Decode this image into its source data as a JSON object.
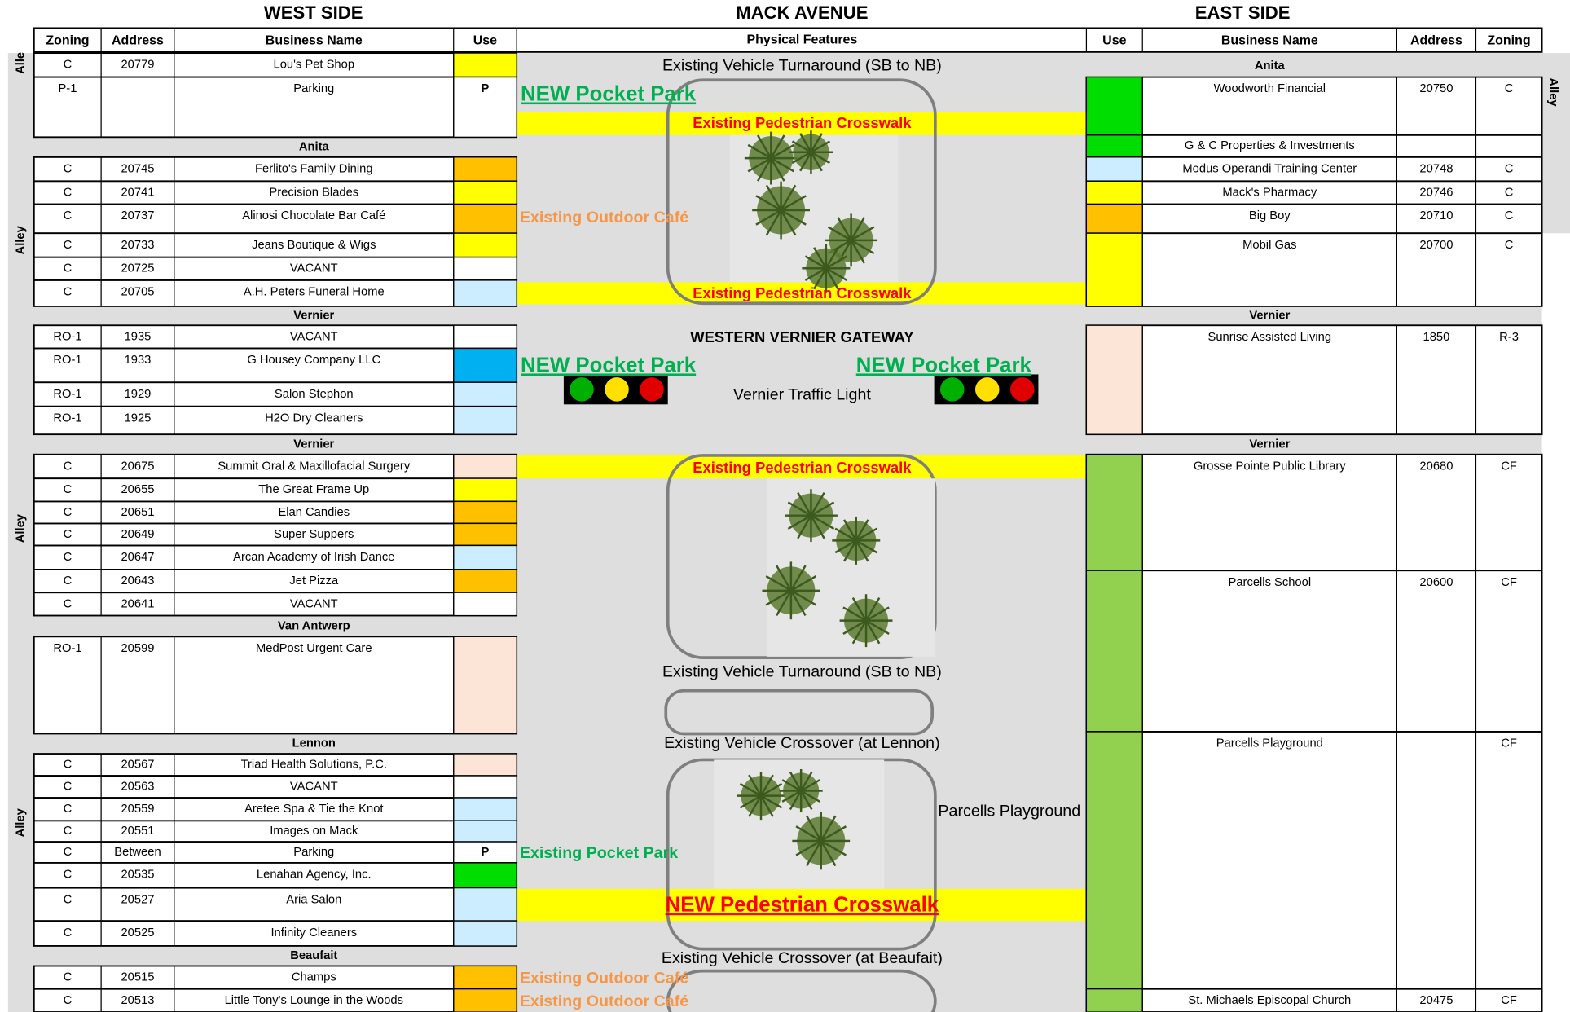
{
  "header": {
    "west_title": "WEST SIDE",
    "middle_title": "MACK AVENUE",
    "east_title": "EAST SIDE",
    "west_columns": [
      "Zoning",
      "Address",
      "Business Name",
      "Use"
    ],
    "middle_column": "Physical Features",
    "east_columns": [
      "Use",
      "Business Name",
      "Address",
      "Zoning"
    ]
  },
  "alleys": {
    "west": [
      "Alle",
      "Alley",
      "Alley",
      "Alley"
    ],
    "east": [
      "Alley"
    ]
  },
  "west": {
    "rows": [
      {
        "zoning": "C",
        "address": "20779",
        "name": "Lou's Pet Shop",
        "color": "#ffff00"
      },
      {
        "zoning": "P-1",
        "name": "Parking",
        "use": "P",
        "color": "#ffffff"
      },
      {
        "street": "Anita"
      },
      {
        "zoning": "C",
        "address": "20745",
        "name": "Ferlito's Family Dining",
        "color": "#ffc000"
      },
      {
        "zoning": "C",
        "address": "20741",
        "name": "Precision Blades",
        "color": "#ffff00"
      },
      {
        "zoning": "C",
        "address": "20737",
        "name": "Alinosi Chocolate Bar Café",
        "color": "#ffc000"
      },
      {
        "zoning": "C",
        "address": "20733",
        "name": "Jeans Boutique & Wigs",
        "color": "#ffff00"
      },
      {
        "zoning": "C",
        "address": "20725",
        "name": "VACANT",
        "color": "#ffffff"
      },
      {
        "zoning": "C",
        "address": "20705",
        "name": "A.H. Peters Funeral Home",
        "color": "#ccecff"
      },
      {
        "street": "Vernier"
      },
      {
        "zoning": "RO-1",
        "address": "1935",
        "name": "VACANT",
        "color": "#ffffff"
      },
      {
        "zoning": "RO-1",
        "address": "1933",
        "name": "G Housey Company LLC",
        "color": "#00b0f0"
      },
      {
        "zoning": "RO-1",
        "address": "1929",
        "name": "Salon Stephon",
        "color": "#ccecff"
      },
      {
        "zoning": "RO-1",
        "address": "1925",
        "name": "H2O Dry Cleaners",
        "color": "#ccecff"
      },
      {
        "street": "Vernier"
      },
      {
        "zoning": "C",
        "address": "20675",
        "name": "Summit Oral & Maxillofacial Surgery",
        "color": "#fce4d6"
      },
      {
        "zoning": "C",
        "address": "20655",
        "name": "The Great Frame Up",
        "color": "#ffff00"
      },
      {
        "zoning": "C",
        "address": "20651",
        "name": "Elan Candies",
        "color": "#ffc000"
      },
      {
        "zoning": "C",
        "address": "20649",
        "name": "Super Suppers",
        "color": "#ffc000"
      },
      {
        "zoning": "C",
        "address": "20647",
        "name": "Arcan Academy of Irish Dance",
        "color": "#ccecff"
      },
      {
        "zoning": "C",
        "address": "20643",
        "name": "Jet Pizza",
        "color": "#ffc000"
      },
      {
        "zoning": "C",
        "address": "20641",
        "name": "VACANT",
        "color": "#ffffff"
      },
      {
        "street": "Van Antwerp"
      },
      {
        "zoning": "RO-1",
        "address": "20599",
        "name": "MedPost Urgent Care",
        "color": "#fce4d6"
      },
      {
        "street": "Lennon"
      },
      {
        "zoning": "C",
        "address": "20567",
        "name": "Triad Health Solutions, P.C.",
        "color": "#fce4d6"
      },
      {
        "zoning": "C",
        "address": "20563",
        "name": "VACANT",
        "color": "#ffffff"
      },
      {
        "zoning": "C",
        "address": "20559",
        "name": "Aretee Spa & Tie the Knot",
        "color": "#ccecff"
      },
      {
        "zoning": "C",
        "address": "20551",
        "name": "Images on Mack",
        "color": "#ccecff"
      },
      {
        "zoning": "C",
        "address": "Between",
        "name": "Parking",
        "use": "P",
        "color": "#ffffff"
      },
      {
        "zoning": "C",
        "address": "20535",
        "name": "Lenahan Agency, Inc.",
        "color": "#00dd00"
      },
      {
        "zoning": "C",
        "address": "20527",
        "name": "Aria Salon",
        "color": "#ccecff"
      },
      {
        "zoning": "C",
        "address": "20525",
        "name": "Infinity Cleaners",
        "color": "#ccecff"
      },
      {
        "street": "Beaufait"
      },
      {
        "zoning": "C",
        "address": "20515",
        "name": "Champs",
        "color": "#ffc000"
      },
      {
        "zoning": "C",
        "address": "20513",
        "name": "Little Tony's Lounge in the Woods",
        "color": "#ffc000"
      }
    ]
  },
  "east": {
    "rows": [
      {
        "street": "Anita"
      },
      {
        "name": "Woodworth Financial",
        "address": "20750",
        "zoning": "C",
        "color": "#00dd00"
      },
      {
        "name": "G & C Properties & Investments",
        "color": "#00dd00"
      },
      {
        "name": "Modus Operandi Training Center",
        "address": "20748",
        "zoning": "C",
        "color": "#ccecff"
      },
      {
        "name": "Mack's Pharmacy",
        "address": "20746",
        "zoning": "C",
        "color": "#ffff00"
      },
      {
        "name": "Big Boy",
        "address": "20710",
        "zoning": "C",
        "color": "#ffc000"
      },
      {
        "name": "Mobil Gas",
        "address": "20700",
        "zoning": "C",
        "color": "#ffff00"
      },
      {
        "street": "Vernier"
      },
      {
        "name": "Sunrise Assisted Living",
        "address": "1850",
        "zoning": "R-3",
        "color": "#fce4d6"
      },
      {
        "street": "Vernier"
      },
      {
        "name": "Grosse Pointe Public Library",
        "address": "20680",
        "zoning": "CF",
        "color": "#92d050"
      },
      {
        "name": "Parcells School",
        "address": "20600",
        "zoning": "CF",
        "color": "#92d050"
      },
      {
        "name": "Parcells Playground",
        "zoning": "CF",
        "color": "#92d050"
      },
      {
        "name": "St. Michaels Episcopal Church",
        "address": "20475",
        "zoning": "CF",
        "color": "#92d050"
      }
    ]
  },
  "features": {
    "items": [
      {
        "text": "Existing Vehicle Turnaround (SB to NB)",
        "style": "plain"
      },
      {
        "text": "NEW Pocket Park",
        "style": "new-park"
      },
      {
        "text": "Existing Pedestrian Crosswalk",
        "style": "crosswalk"
      },
      {
        "text": "Existing Outdoor Café",
        "style": "cafe"
      },
      {
        "text": "Existing Pedestrian Crosswalk",
        "style": "crosswalk"
      },
      {
        "text": "WESTERN VERNIER GATEWAY",
        "style": "bold"
      },
      {
        "text": "NEW Pocket Park",
        "style": "new-park"
      },
      {
        "text": "NEW Pocket Park",
        "style": "new-park"
      },
      {
        "text": "Vernier Traffic Light",
        "style": "plain"
      },
      {
        "text": "Existing Pedestrian Crosswalk",
        "style": "crosswalk"
      },
      {
        "text": "Existing Vehicle Turnaround (SB to NB)",
        "style": "plain"
      },
      {
        "text": "Existing Vehicle Crossover (at Lennon)",
        "style": "plain"
      },
      {
        "text": "Parcells Playground",
        "style": "plain"
      },
      {
        "text": "Existing Pocket Park",
        "style": "park"
      },
      {
        "text": "NEW Pedestrian Crosswalk",
        "style": "new-crosswalk"
      },
      {
        "text": "Existing Vehicle Crossover (at Beaufait)",
        "style": "plain"
      },
      {
        "text": "Existing Outdoor Café",
        "style": "cafe"
      },
      {
        "text": "Existing Outdoor Café",
        "style": "cafe"
      }
    ]
  }
}
